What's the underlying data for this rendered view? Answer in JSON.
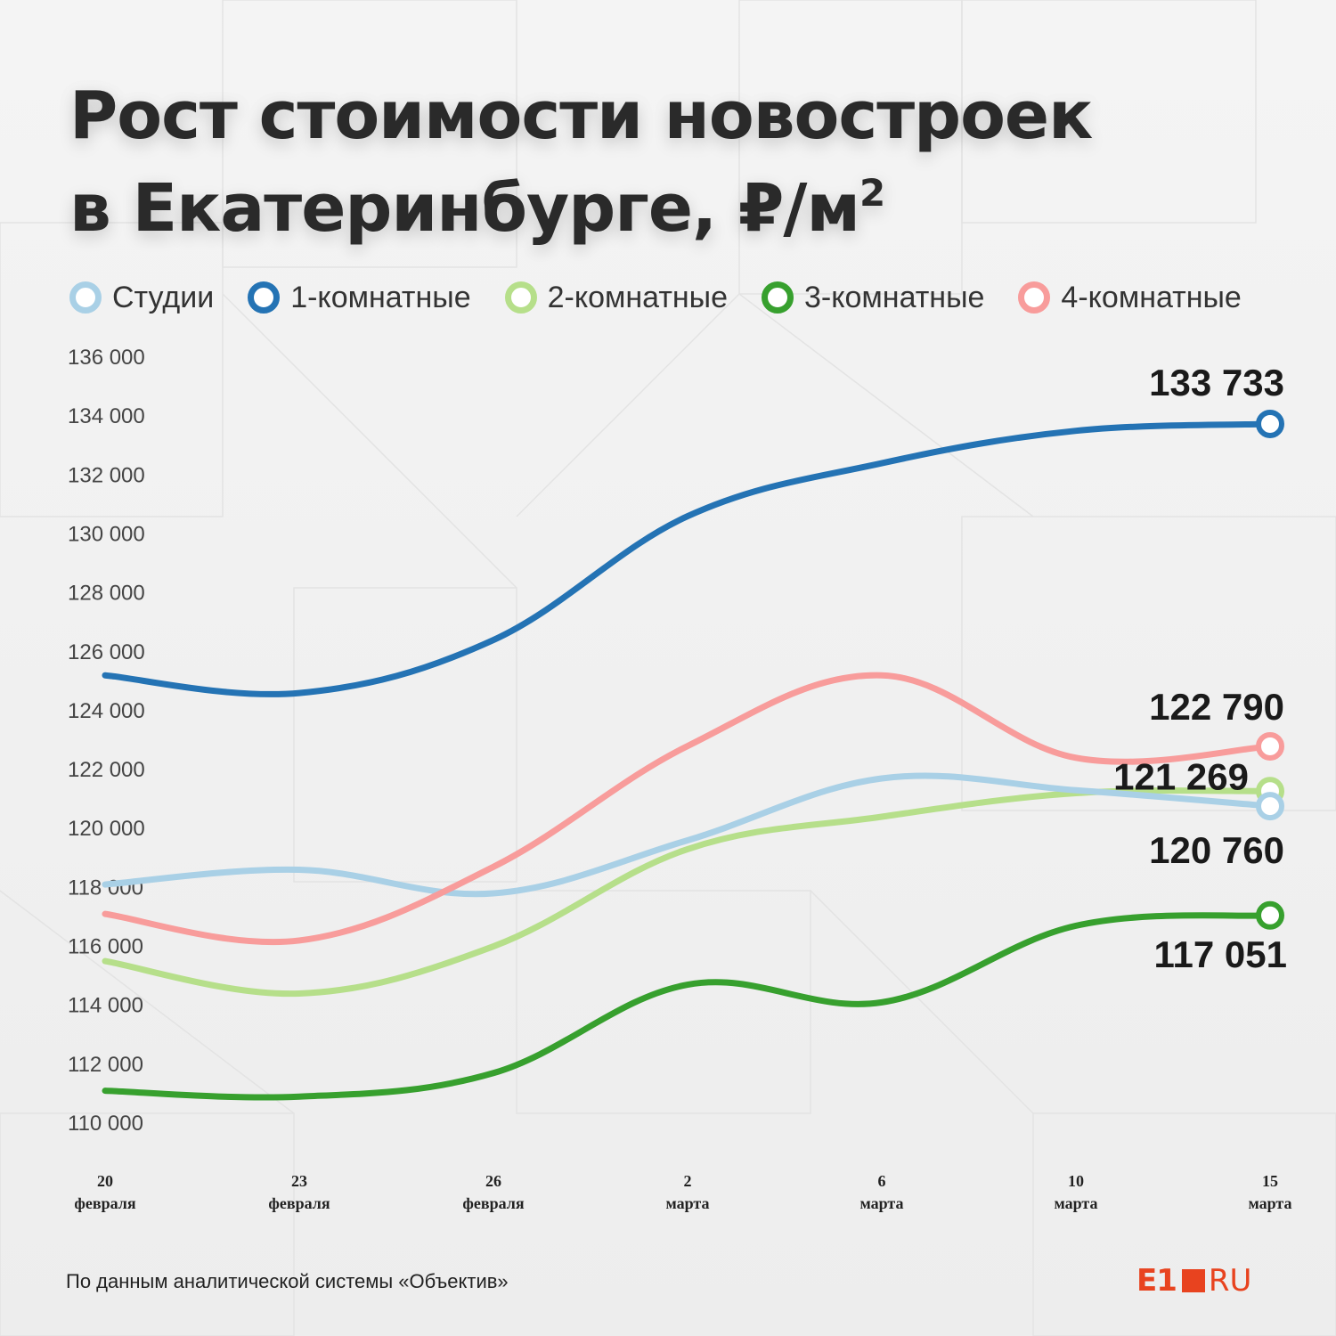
{
  "title_line1": "Рост стоимости новостроек",
  "title_line2": "в Екатеринбурге, ₽/м",
  "title_superscript": "2",
  "source": "По данным аналитической системы «Объектив»",
  "logo": {
    "e1": "E1",
    "ru": "RU"
  },
  "chart_data": {
    "type": "line",
    "title": "Рост стоимости новостроек в Екатеринбурге, ₽/м²",
    "xlabel": "",
    "ylabel": "",
    "categories": [
      [
        "20",
        "февраля"
      ],
      [
        "23",
        "февраля"
      ],
      [
        "26",
        "февраля"
      ],
      [
        "2",
        "марта"
      ],
      [
        "6",
        "марта"
      ],
      [
        "10",
        "марта"
      ],
      [
        "15",
        "марта"
      ]
    ],
    "ylim": [
      110000,
      136000
    ],
    "yticks": [
      110000,
      112000,
      114000,
      116000,
      118000,
      120000,
      122000,
      124000,
      126000,
      128000,
      130000,
      132000,
      134000,
      136000
    ],
    "grid": false,
    "legend_position": "top",
    "series": [
      {
        "name": "Студии",
        "color": "#a9d0e6",
        "values": [
          118100,
          118600,
          117800,
          119600,
          121700,
          121300,
          120760
        ],
        "end_label": "120 760"
      },
      {
        "name": "1-комнатные",
        "color": "#2473b4",
        "values": [
          125200,
          124600,
          126400,
          130600,
          132400,
          133500,
          133733
        ],
        "end_label": "133 733"
      },
      {
        "name": "2-комнатные",
        "color": "#b6df8a",
        "values": [
          115500,
          114400,
          116000,
          119300,
          120400,
          121200,
          121269
        ],
        "end_label": "121 269"
      },
      {
        "name": "3-комнатные",
        "color": "#37a02e",
        "values": [
          111100,
          110900,
          111700,
          114700,
          114100,
          116700,
          117051
        ],
        "end_label": "117 051"
      },
      {
        "name": "4-комнатные",
        "color": "#f89c9b",
        "values": [
          117100,
          116200,
          118700,
          122800,
          125200,
          122400,
          122790
        ],
        "end_label": "122 790"
      }
    ]
  }
}
